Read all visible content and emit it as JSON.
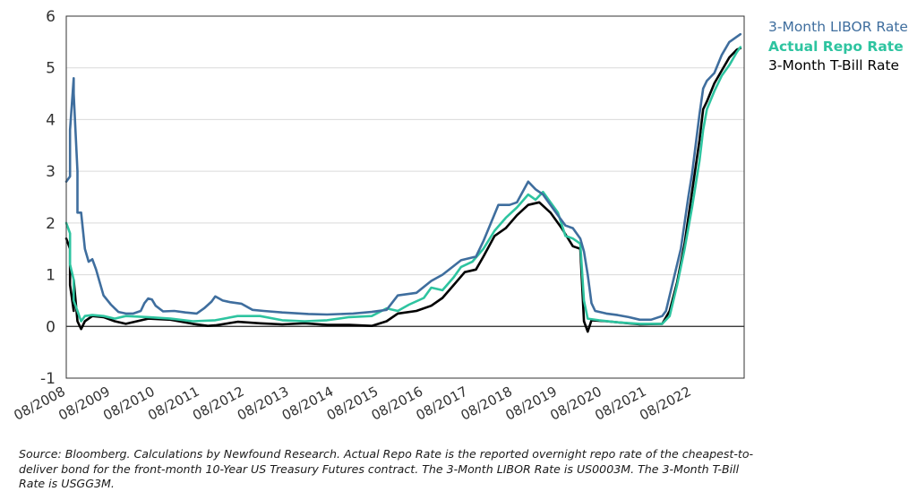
{
  "chart_data": {
    "type": "line",
    "title": "",
    "xlabel": "",
    "ylabel": "",
    "ylim": [
      -1,
      6
    ],
    "yticks": [
      "-1",
      "0",
      "1",
      "2",
      "3",
      "4",
      "5",
      "6"
    ],
    "xtick_labels": [
      "08/2008",
      "08/2009",
      "08/2010",
      "08/2011",
      "08/2012",
      "08/2013",
      "08/2014",
      "08/2015",
      "08/2016",
      "08/2017",
      "08/2018",
      "08/2019",
      "08/2020",
      "08/2021",
      "08/2022"
    ],
    "grid": "horizontal",
    "legend_position": "right",
    "series": [
      {
        "name": "3-Month LIBOR Rate",
        "color": "#3f6e9e",
        "points": [
          [
            "08/2008",
            2.8
          ],
          [
            "09/2008",
            2.9
          ],
          [
            "09/2008",
            3.8
          ],
          [
            "10/2008",
            4.8
          ],
          [
            "10/2008",
            4.5
          ],
          [
            "11/2008",
            3.0
          ],
          [
            "11/2008",
            2.2
          ],
          [
            "12/2008",
            2.2
          ],
          [
            "01/2009",
            1.5
          ],
          [
            "02/2009",
            1.25
          ],
          [
            "03/2009",
            1.3
          ],
          [
            "04/2009",
            1.1
          ],
          [
            "05/2009",
            0.85
          ],
          [
            "06/2009",
            0.6
          ],
          [
            "08/2009",
            0.42
          ],
          [
            "10/2009",
            0.28
          ],
          [
            "12/2009",
            0.25
          ],
          [
            "02/2010",
            0.25
          ],
          [
            "04/2010",
            0.3
          ],
          [
            "05/2010",
            0.45
          ],
          [
            "06/2010",
            0.54
          ],
          [
            "07/2010",
            0.52
          ],
          [
            "08/2010",
            0.4
          ],
          [
            "10/2010",
            0.29
          ],
          [
            "01/2011",
            0.3
          ],
          [
            "04/2011",
            0.27
          ],
          [
            "07/2011",
            0.25
          ],
          [
            "09/2011",
            0.35
          ],
          [
            "11/2011",
            0.48
          ],
          [
            "12/2011",
            0.58
          ],
          [
            "02/2012",
            0.5
          ],
          [
            "04/2012",
            0.47
          ],
          [
            "07/2012",
            0.44
          ],
          [
            "10/2012",
            0.32
          ],
          [
            "01/2013",
            0.3
          ],
          [
            "06/2013",
            0.27
          ],
          [
            "01/2014",
            0.24
          ],
          [
            "06/2014",
            0.23
          ],
          [
            "01/2015",
            0.25
          ],
          [
            "06/2015",
            0.28
          ],
          [
            "10/2015",
            0.32
          ],
          [
            "01/2016",
            0.6
          ],
          [
            "06/2016",
            0.65
          ],
          [
            "10/2016",
            0.88
          ],
          [
            "01/2017",
            1.0
          ],
          [
            "06/2017",
            1.28
          ],
          [
            "10/2017",
            1.35
          ],
          [
            "12/2017",
            1.65
          ],
          [
            "02/2018",
            2.0
          ],
          [
            "04/2018",
            2.35
          ],
          [
            "07/2018",
            2.35
          ],
          [
            "09/2018",
            2.4
          ],
          [
            "12/2018",
            2.8
          ],
          [
            "02/2019",
            2.65
          ],
          [
            "04/2019",
            2.55
          ],
          [
            "06/2019",
            2.35
          ],
          [
            "08/2019",
            2.15
          ],
          [
            "10/2019",
            1.95
          ],
          [
            "12/2019",
            1.9
          ],
          [
            "02/2020",
            1.7
          ],
          [
            "03/2020",
            1.45
          ],
          [
            "04/2020",
            1.0
          ],
          [
            "05/2020",
            0.45
          ],
          [
            "06/2020",
            0.3
          ],
          [
            "09/2020",
            0.25
          ],
          [
            "12/2020",
            0.22
          ],
          [
            "03/2021",
            0.18
          ],
          [
            "06/2021",
            0.13
          ],
          [
            "09/2021",
            0.13
          ],
          [
            "12/2021",
            0.2
          ],
          [
            "01/2022",
            0.3
          ],
          [
            "03/2022",
            0.9
          ],
          [
            "05/2022",
            1.5
          ],
          [
            "07/2022",
            2.5
          ],
          [
            "08/2022",
            2.95
          ],
          [
            "10/2022",
            4.1
          ],
          [
            "11/2022",
            4.6
          ],
          [
            "12/2022",
            4.75
          ],
          [
            "02/2023",
            4.9
          ],
          [
            "04/2023",
            5.25
          ],
          [
            "06/2023",
            5.5
          ],
          [
            "08/2023",
            5.6
          ],
          [
            "09/2023",
            5.65
          ]
        ]
      },
      {
        "name": "Actual Repo Rate",
        "color": "#2ec4a0",
        "points": [
          [
            "08/2008",
            2.0
          ],
          [
            "09/2008",
            1.8
          ],
          [
            "09/2008",
            1.2
          ],
          [
            "10/2008",
            0.9
          ],
          [
            "10/2008",
            0.5
          ],
          [
            "11/2008",
            0.3
          ],
          [
            "12/2008",
            0.1
          ],
          [
            "01/2009",
            0.2
          ],
          [
            "03/2009",
            0.22
          ],
          [
            "06/2009",
            0.2
          ],
          [
            "09/2009",
            0.15
          ],
          [
            "12/2009",
            0.2
          ],
          [
            "06/2010",
            0.18
          ],
          [
            "12/2010",
            0.15
          ],
          [
            "06/2011",
            0.1
          ],
          [
            "12/2011",
            0.12
          ],
          [
            "06/2012",
            0.2
          ],
          [
            "12/2012",
            0.2
          ],
          [
            "06/2013",
            0.12
          ],
          [
            "12/2013",
            0.1
          ],
          [
            "06/2014",
            0.12
          ],
          [
            "12/2014",
            0.18
          ],
          [
            "06/2015",
            0.2
          ],
          [
            "10/2015",
            0.35
          ],
          [
            "01/2016",
            0.3
          ],
          [
            "04/2016",
            0.42
          ],
          [
            "08/2016",
            0.55
          ],
          [
            "10/2016",
            0.75
          ],
          [
            "01/2017",
            0.7
          ],
          [
            "04/2017",
            0.95
          ],
          [
            "06/2017",
            1.15
          ],
          [
            "09/2017",
            1.25
          ],
          [
            "12/2017",
            1.5
          ],
          [
            "03/2018",
            1.85
          ],
          [
            "06/2018",
            2.1
          ],
          [
            "09/2018",
            2.3
          ],
          [
            "12/2018",
            2.55
          ],
          [
            "02/2019",
            2.45
          ],
          [
            "04/2019",
            2.6
          ],
          [
            "06/2019",
            2.4
          ],
          [
            "08/2019",
            2.2
          ],
          [
            "10/2019",
            1.75
          ],
          [
            "12/2019",
            1.7
          ],
          [
            "02/2020",
            1.6
          ],
          [
            "03/2020",
            0.5
          ],
          [
            "04/2020",
            0.15
          ],
          [
            "07/2020",
            0.12
          ],
          [
            "12/2020",
            0.08
          ],
          [
            "06/2021",
            0.05
          ],
          [
            "12/2021",
            0.05
          ],
          [
            "02/2022",
            0.2
          ],
          [
            "04/2022",
            0.8
          ],
          [
            "06/2022",
            1.5
          ],
          [
            "08/2022",
            2.3
          ],
          [
            "10/2022",
            3.2
          ],
          [
            "11/2022",
            3.8
          ],
          [
            "12/2022",
            4.2
          ],
          [
            "02/2023",
            4.55
          ],
          [
            "04/2023",
            4.85
          ],
          [
            "06/2023",
            5.05
          ],
          [
            "08/2023",
            5.3
          ],
          [
            "09/2023",
            5.4
          ]
        ]
      },
      {
        "name": "3-Month T-Bill Rate",
        "color": "#000000",
        "points": [
          [
            "08/2008",
            1.7
          ],
          [
            "09/2008",
            1.5
          ],
          [
            "09/2008",
            0.8
          ],
          [
            "10/2008",
            0.3
          ],
          [
            "10/2008",
            0.9
          ],
          [
            "11/2008",
            0.1
          ],
          [
            "12/2008",
            -0.05
          ],
          [
            "01/2009",
            0.1
          ],
          [
            "03/2009",
            0.2
          ],
          [
            "06/2009",
            0.18
          ],
          [
            "09/2009",
            0.1
          ],
          [
            "12/2009",
            0.05
          ],
          [
            "06/2010",
            0.15
          ],
          [
            "12/2010",
            0.13
          ],
          [
            "06/2011",
            0.05
          ],
          [
            "10/2011",
            0.01
          ],
          [
            "12/2011",
            0.02
          ],
          [
            "06/2012",
            0.09
          ],
          [
            "12/2012",
            0.06
          ],
          [
            "06/2013",
            0.04
          ],
          [
            "12/2013",
            0.06
          ],
          [
            "06/2014",
            0.03
          ],
          [
            "12/2014",
            0.03
          ],
          [
            "06/2015",
            0.01
          ],
          [
            "10/2015",
            0.1
          ],
          [
            "01/2016",
            0.25
          ],
          [
            "06/2016",
            0.3
          ],
          [
            "10/2016",
            0.4
          ],
          [
            "01/2017",
            0.55
          ],
          [
            "04/2017",
            0.8
          ],
          [
            "07/2017",
            1.05
          ],
          [
            "10/2017",
            1.1
          ],
          [
            "12/2017",
            1.35
          ],
          [
            "03/2018",
            1.75
          ],
          [
            "06/2018",
            1.9
          ],
          [
            "09/2018",
            2.15
          ],
          [
            "12/2018",
            2.35
          ],
          [
            "03/2019",
            2.4
          ],
          [
            "06/2019",
            2.2
          ],
          [
            "09/2019",
            1.9
          ],
          [
            "12/2019",
            1.55
          ],
          [
            "02/2020",
            1.5
          ],
          [
            "03/2020",
            0.1
          ],
          [
            "04/2020",
            -0.1
          ],
          [
            "05/2020",
            0.12
          ],
          [
            "09/2020",
            0.1
          ],
          [
            "12/2020",
            0.08
          ],
          [
            "06/2021",
            0.04
          ],
          [
            "12/2021",
            0.05
          ],
          [
            "02/2022",
            0.3
          ],
          [
            "04/2022",
            0.85
          ],
          [
            "06/2022",
            1.6
          ],
          [
            "08/2022",
            2.6
          ],
          [
            "10/2022",
            3.6
          ],
          [
            "11/2022",
            4.2
          ],
          [
            "12/2022",
            4.35
          ],
          [
            "02/2023",
            4.7
          ],
          [
            "04/2023",
            4.95
          ],
          [
            "06/2023",
            5.2
          ],
          [
            "08/2023",
            5.35
          ],
          [
            "09/2023",
            5.38
          ]
        ]
      }
    ]
  },
  "legend": {
    "libor": "3-Month LIBOR Rate",
    "repo": "Actual Repo Rate",
    "tbill": "3-Month T-Bill Rate"
  },
  "source_note": "Source: Bloomberg.  Calculations by Newfound Research.  Actual Repo Rate is the reported overnight repo rate of the cheapest-to-deliver bond for the front-month 10-Year US Treasury Futures contract. The 3-Month LIBOR Rate is US0003M.  The 3-Month T-Bill Rate is USGG3M."
}
